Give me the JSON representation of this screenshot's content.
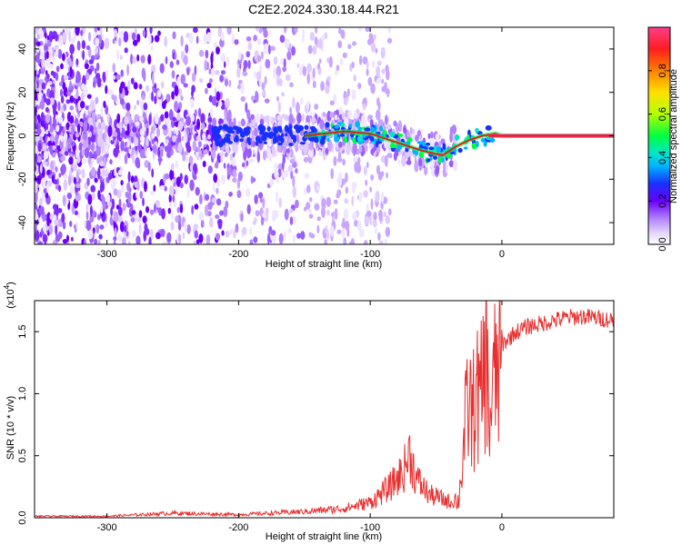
{
  "page": {
    "title": "C2E2.2024.330.18.44.R21"
  },
  "colors": {
    "ridge": "#e02020",
    "snr_line": "#e83030",
    "colorbar_stops": [
      "#ffffff",
      "#d6b8ff",
      "#a06bff",
      "#6a00ff",
      "#1830ff",
      "#00b4ff",
      "#00e6c8",
      "#00ff40",
      "#b4ff00",
      "#ffe000",
      "#ff8000",
      "#ff1e1e",
      "#ff3c8c"
    ]
  },
  "chart_data": [
    {
      "type": "heatmap",
      "xlabel": "Height of straight line (km)",
      "ylabel": "Frequency (Hz)",
      "xlim": [
        -355,
        85
      ],
      "ylim": [
        -50,
        50
      ],
      "x_ticks": [
        -300,
        -200,
        -100,
        0
      ],
      "x_tick_labels": [
        "-300",
        "-200",
        "-100",
        "0"
      ],
      "y_ticks": [
        -40,
        -20,
        0,
        20,
        40
      ],
      "y_tick_labels": [
        "-40",
        "-20",
        "0",
        "20",
        "40"
      ],
      "colorbar": {
        "label": "Normalized spectral amplitude",
        "range": [
          0,
          1
        ],
        "ticks": [
          0.0,
          0.2,
          0.4,
          0.6,
          0.8
        ],
        "tick_labels": [
          "0.0",
          "0.2",
          "0.4",
          "0.6",
          "0.8"
        ]
      },
      "ridge": {
        "x": [
          -150,
          -120,
          -100,
          -80,
          -60,
          -45,
          -35,
          -25,
          -15,
          -5,
          0,
          20,
          40,
          60,
          85
        ],
        "y": [
          0,
          2,
          1,
          -3,
          -7,
          -9,
          -5,
          -2,
          0,
          1,
          0,
          0,
          0,
          0,
          0
        ]
      },
      "grid": false
    },
    {
      "type": "line",
      "xlabel": "Height of straight line (km)",
      "ylabel": "SNR (10 * v/v)",
      "y_scale_label": "(x10",
      "y_scale_exponent": "4",
      "xlim": [
        -355,
        85
      ],
      "ylim": [
        0,
        1.75
      ],
      "x_ticks": [
        -300,
        -200,
        -100,
        0
      ],
      "x_tick_labels": [
        "-300",
        "-200",
        "-100",
        "0"
      ],
      "y_ticks": [
        0.0,
        0.5,
        1.0,
        1.5
      ],
      "y_tick_labels": [
        "0.0",
        "0.5",
        "1.0",
        "1.5"
      ],
      "series": [
        {
          "x": [
            -355,
            -300,
            -250,
            -200,
            -150,
            -120,
            -100,
            -85,
            -75,
            -70,
            -65,
            -55,
            -45,
            -38,
            -33,
            -30,
            -28,
            -25,
            -22,
            -20,
            -17,
            -14,
            -12,
            -10,
            -8,
            -5,
            -2,
            0,
            5,
            10,
            20,
            30,
            40,
            50,
            60,
            70,
            85
          ],
          "y": [
            0.01,
            0.01,
            0.03,
            0.02,
            0.04,
            0.06,
            0.1,
            0.2,
            0.3,
            0.42,
            0.25,
            0.15,
            0.12,
            0.1,
            0.15,
            0.5,
            0.8,
            1.05,
            0.9,
            1.2,
            1.0,
            1.25,
            1.55,
            0.9,
            1.0,
            1.3,
            1.35,
            1.4,
            1.45,
            1.5,
            1.55,
            1.57,
            1.6,
            1.62,
            1.63,
            1.62,
            1.6
          ]
        }
      ],
      "grid": false
    }
  ]
}
